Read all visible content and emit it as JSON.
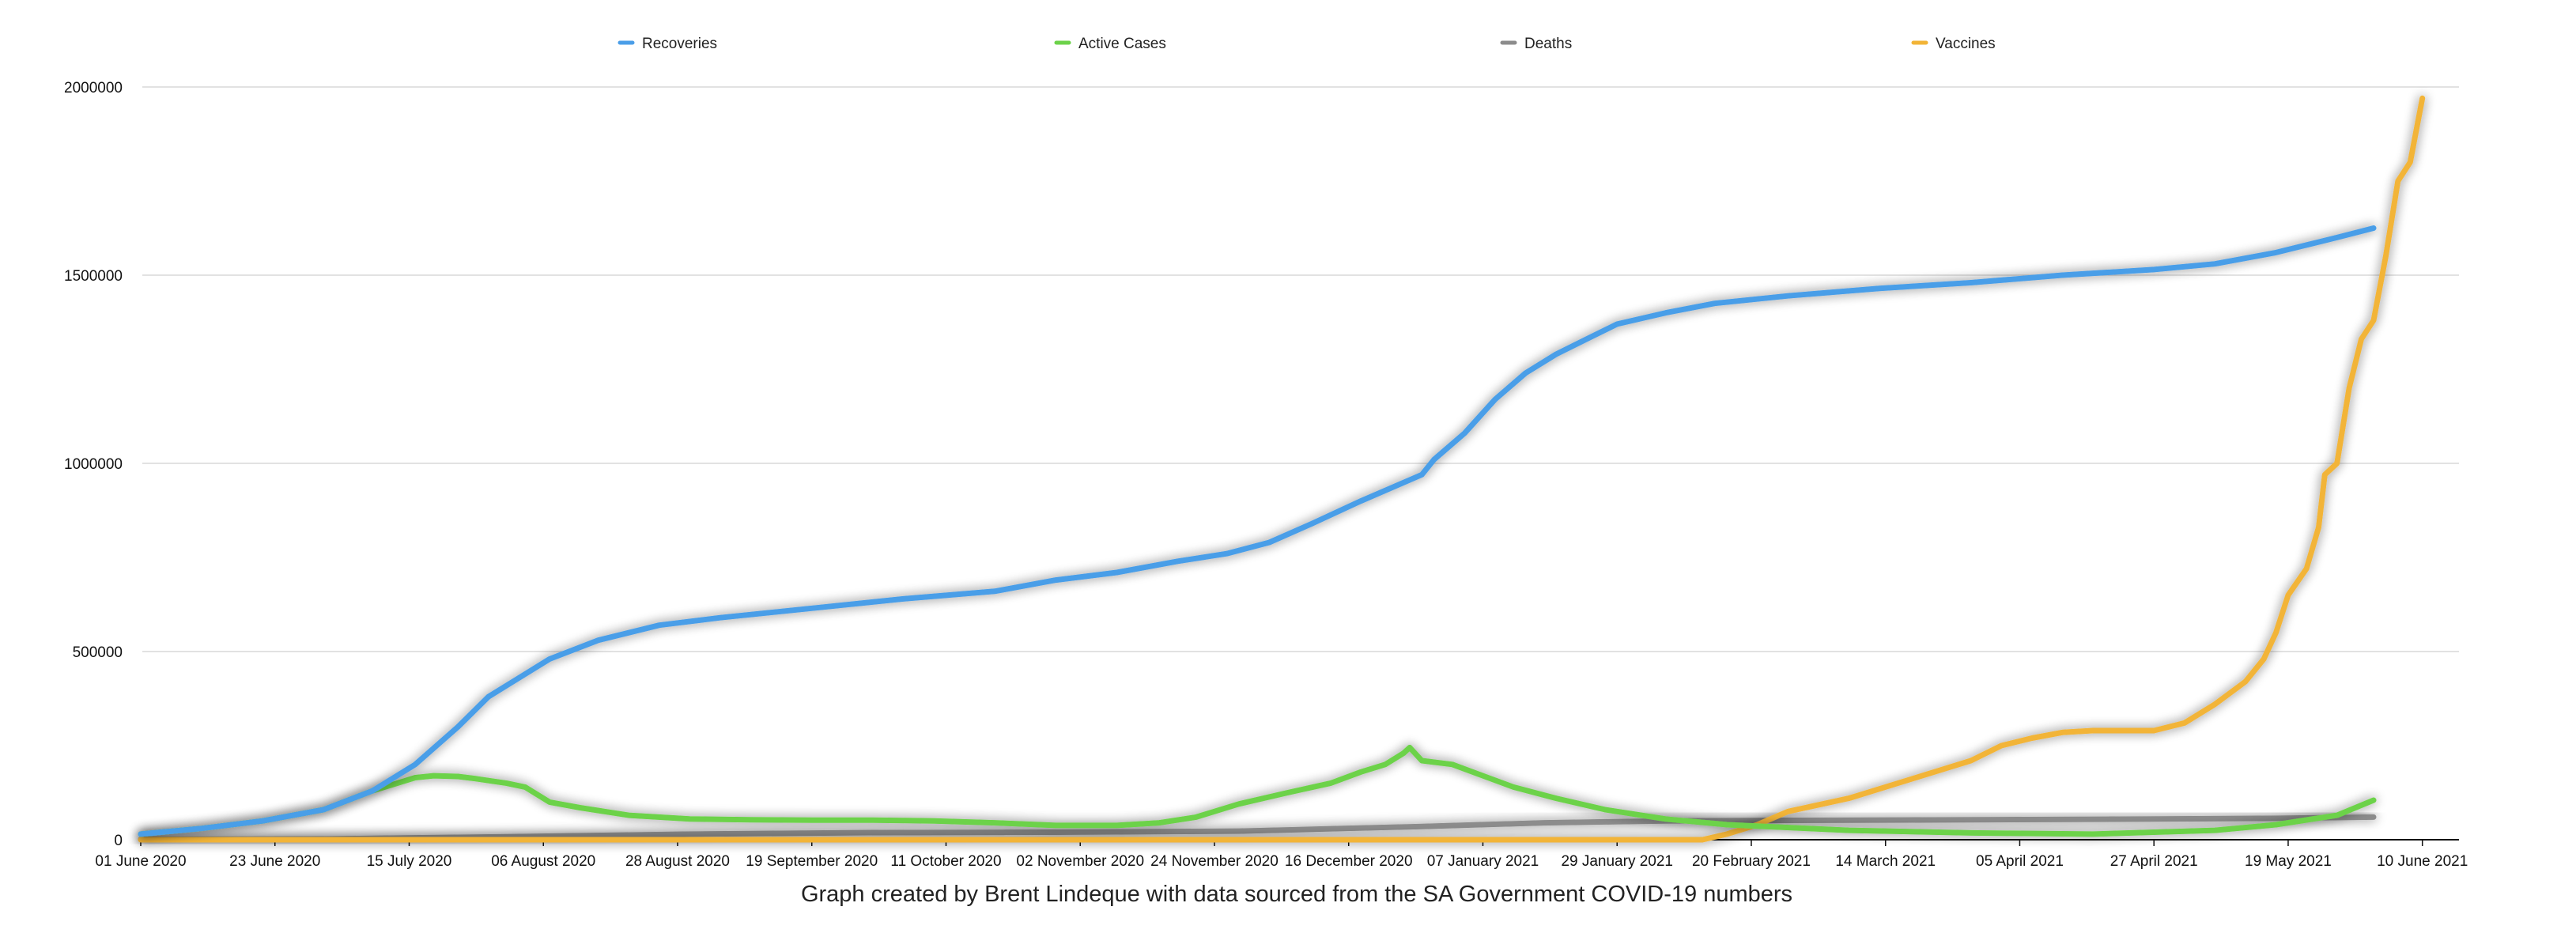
{
  "caption": "Graph created by Brent Lindeque with data sourced from the SA Government COVID-19 numbers",
  "chart_data": {
    "type": "line",
    "title": "",
    "xlabel": "",
    "ylabel": "",
    "ylim": [
      0,
      2000000
    ],
    "yticks": [
      0,
      500000,
      1000000,
      1500000,
      2000000
    ],
    "x_tick_labels": [
      "01 June 2020",
      "23 June 2020",
      "15 July 2020",
      "06 August 2020",
      "28 August 2020",
      "19 September 2020",
      "11 October 2020",
      "02 November 2020",
      "24 November 2020",
      "16 December 2020",
      "07 January 2021",
      "29 January 2021",
      "20 February 2021",
      "14 March 2021",
      "05 April 2021",
      "27 April 2021",
      "19 May 2021",
      "10 June 2021"
    ],
    "grid": true,
    "legend_position": "top",
    "series": [
      {
        "name": "Recoveries",
        "color": "#4a9ee8",
        "points": [
          [
            0,
            15000
          ],
          [
            10,
            30000
          ],
          [
            20,
            50000
          ],
          [
            30,
            80000
          ],
          [
            38,
            130000
          ],
          [
            45,
            200000
          ],
          [
            52,
            300000
          ],
          [
            57,
            380000
          ],
          [
            62,
            430000
          ],
          [
            67,
            480000
          ],
          [
            75,
            530000
          ],
          [
            85,
            570000
          ],
          [
            95,
            590000
          ],
          [
            110,
            615000
          ],
          [
            125,
            640000
          ],
          [
            140,
            660000
          ],
          [
            150,
            690000
          ],
          [
            160,
            710000
          ],
          [
            170,
            740000
          ],
          [
            178,
            760000
          ],
          [
            185,
            790000
          ],
          [
            192,
            840000
          ],
          [
            200,
            900000
          ],
          [
            210,
            970000
          ],
          [
            212,
            1010000
          ],
          [
            217,
            1080000
          ],
          [
            222,
            1170000
          ],
          [
            227,
            1240000
          ],
          [
            232,
            1290000
          ],
          [
            237,
            1330000
          ],
          [
            242,
            1370000
          ],
          [
            250,
            1400000
          ],
          [
            258,
            1425000
          ],
          [
            270,
            1445000
          ],
          [
            285,
            1465000
          ],
          [
            300,
            1480000
          ],
          [
            315,
            1500000
          ],
          [
            330,
            1515000
          ],
          [
            340,
            1530000
          ],
          [
            350,
            1560000
          ],
          [
            360,
            1600000
          ],
          [
            366,
            1625000
          ]
        ]
      },
      {
        "name": "Active Cases",
        "color": "#6cd24a",
        "points": [
          [
            0,
            15000
          ],
          [
            10,
            30000
          ],
          [
            20,
            50000
          ],
          [
            30,
            80000
          ],
          [
            38,
            130000
          ],
          [
            45,
            165000
          ],
          [
            48,
            170000
          ],
          [
            52,
            168000
          ],
          [
            55,
            162000
          ],
          [
            60,
            150000
          ],
          [
            63,
            140000
          ],
          [
            67,
            100000
          ],
          [
            72,
            85000
          ],
          [
            80,
            65000
          ],
          [
            90,
            55000
          ],
          [
            100,
            53000
          ],
          [
            110,
            52000
          ],
          [
            120,
            52000
          ],
          [
            130,
            50000
          ],
          [
            140,
            45000
          ],
          [
            150,
            38000
          ],
          [
            160,
            38000
          ],
          [
            167,
            45000
          ],
          [
            173,
            60000
          ],
          [
            180,
            95000
          ],
          [
            188,
            125000
          ],
          [
            195,
            150000
          ],
          [
            200,
            180000
          ],
          [
            204,
            200000
          ],
          [
            207,
            230000
          ],
          [
            208,
            245000
          ],
          [
            210,
            210000
          ],
          [
            215,
            200000
          ],
          [
            220,
            170000
          ],
          [
            225,
            140000
          ],
          [
            232,
            110000
          ],
          [
            240,
            80000
          ],
          [
            250,
            55000
          ],
          [
            260,
            40000
          ],
          [
            280,
            25000
          ],
          [
            300,
            18000
          ],
          [
            320,
            15000
          ],
          [
            340,
            25000
          ],
          [
            350,
            40000
          ],
          [
            360,
            65000
          ],
          [
            366,
            105000
          ]
        ]
      },
      {
        "name": "Deaths",
        "color": "#8c8c8c",
        "points": [
          [
            0,
            1000
          ],
          [
            30,
            2000
          ],
          [
            60,
            8000
          ],
          [
            90,
            15000
          ],
          [
            120,
            19000
          ],
          [
            150,
            20000
          ],
          [
            180,
            23000
          ],
          [
            210,
            35000
          ],
          [
            230,
            45000
          ],
          [
            250,
            50000
          ],
          [
            270,
            51500
          ],
          [
            300,
            53000
          ],
          [
            330,
            55000
          ],
          [
            350,
            57000
          ],
          [
            366,
            60000
          ]
        ]
      },
      {
        "name": "Vaccines",
        "color": "#f2b437",
        "points": [
          [
            0,
            0
          ],
          [
            256,
            0
          ],
          [
            260,
            15000
          ],
          [
            265,
            40000
          ],
          [
            270,
            75000
          ],
          [
            280,
            110000
          ],
          [
            290,
            160000
          ],
          [
            300,
            210000
          ],
          [
            305,
            250000
          ],
          [
            310,
            270000
          ],
          [
            315,
            285000
          ],
          [
            320,
            290000
          ],
          [
            325,
            290000
          ],
          [
            330,
            290000
          ],
          [
            335,
            310000
          ],
          [
            340,
            360000
          ],
          [
            345,
            420000
          ],
          [
            348,
            480000
          ],
          [
            350,
            550000
          ],
          [
            352,
            650000
          ],
          [
            355,
            720000
          ],
          [
            357,
            830000
          ],
          [
            358,
            970000
          ],
          [
            360,
            1000000
          ],
          [
            362,
            1200000
          ],
          [
            364,
            1330000
          ],
          [
            366,
            1380000
          ],
          [
            368,
            1550000
          ],
          [
            370,
            1750000
          ],
          [
            372,
            1800000
          ],
          [
            374,
            1970000
          ]
        ]
      }
    ]
  }
}
